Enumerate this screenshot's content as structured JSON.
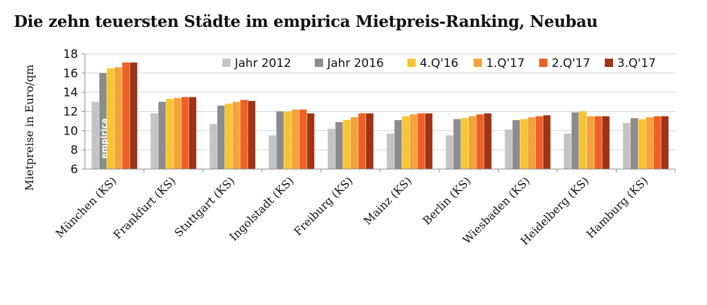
{
  "chart_data": {
    "type": "bar",
    "title": "Die zehn teuersten Städte im empirica Mietpreis-Ranking, Neubau",
    "xlabel": "",
    "ylabel": "Mietpreise in Euro/qm",
    "ylim": [
      6,
      18
    ],
    "yticks": [
      6,
      8,
      10,
      12,
      14,
      16,
      18
    ],
    "grid": true,
    "legend_position": "top",
    "watermark": "empirica",
    "categories": [
      "München (KS)",
      "Frankfurt  (KS)",
      "Stuttgart (KS)",
      "Ingolstadt (KS)",
      "Freiburg (KS)",
      "Mainz (KS)",
      "Berlin (KS)",
      "Wiesbaden (KS)",
      "Heidelberg (KS)",
      "Hamburg (KS)"
    ],
    "series": [
      {
        "name": "Jahr 2012",
        "color": "#c4c4c4",
        "values": [
          13.0,
          11.8,
          10.7,
          9.5,
          10.2,
          9.7,
          9.5,
          10.1,
          9.7,
          10.8
        ]
      },
      {
        "name": "Jahr 2016",
        "color": "#8c8c8c",
        "values": [
          16.0,
          13.0,
          12.6,
          12.0,
          10.9,
          11.1,
          11.2,
          11.1,
          11.9,
          11.3
        ]
      },
      {
        "name": "4.Q'16",
        "color": "#f7c531",
        "values": [
          16.5,
          13.3,
          12.8,
          12.0,
          11.1,
          11.5,
          11.3,
          11.2,
          12.0,
          11.2
        ]
      },
      {
        "name": "1.Q'17",
        "color": "#f6a23a",
        "values": [
          16.6,
          13.4,
          13.0,
          12.2,
          11.4,
          11.7,
          11.5,
          11.4,
          11.5,
          11.4
        ]
      },
      {
        "name": "2.Q'17",
        "color": "#ee6025",
        "values": [
          17.1,
          13.5,
          13.2,
          12.2,
          11.8,
          11.8,
          11.7,
          11.5,
          11.5,
          11.5
        ]
      },
      {
        "name": "3.Q'17",
        "color": "#9e3413",
        "values": [
          17.1,
          13.5,
          13.1,
          11.8,
          11.8,
          11.8,
          11.8,
          11.6,
          11.5,
          11.5
        ]
      }
    ]
  }
}
